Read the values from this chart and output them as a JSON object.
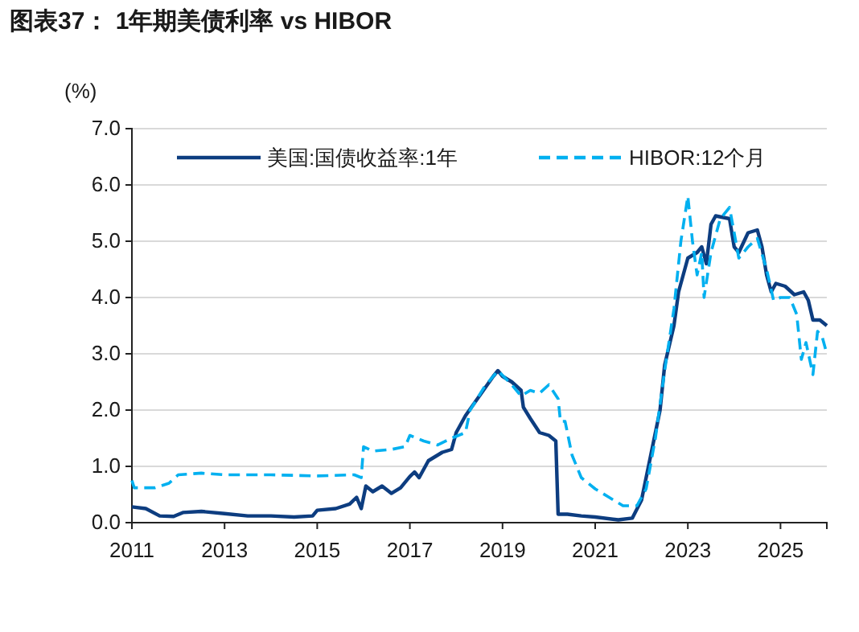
{
  "chart_data": {
    "type": "line",
    "title": "图表37： 1年期美债利率 vs HIBOR",
    "ylabel": "(%)",
    "xlim": [
      2011,
      2026
    ],
    "xticks": [
      2011,
      2013,
      2015,
      2017,
      2019,
      2021,
      2023,
      2025
    ],
    "ylim": [
      0,
      7
    ],
    "yticks": [
      {
        "value": 0,
        "label": "0.0"
      },
      {
        "value": 1,
        "label": "1.0"
      },
      {
        "value": 2,
        "label": "2.0"
      },
      {
        "value": 3,
        "label": "3.0"
      },
      {
        "value": 4,
        "label": "4.0"
      },
      {
        "value": 5,
        "label": "5.0"
      },
      {
        "value": 6,
        "label": "6.0"
      },
      {
        "value": 7,
        "label": "7.0"
      }
    ],
    "grid": "y",
    "legend": "top",
    "marker": "none",
    "series": [
      {
        "name": "美国:国债收益率:1年",
        "color": "#0d3d80",
        "line_style": "solid",
        "x": [
          2011.0,
          2011.3,
          2011.6,
          2011.9,
          2012.1,
          2012.5,
          2013.0,
          2013.5,
          2014.0,
          2014.5,
          2014.9,
          2015.0,
          2015.4,
          2015.7,
          2015.85,
          2015.95,
          2016.05,
          2016.2,
          2016.4,
          2016.6,
          2016.8,
          2017.0,
          2017.1,
          2017.2,
          2017.4,
          2017.7,
          2017.9,
          2018.0,
          2018.2,
          2018.5,
          2018.8,
          2018.9,
          2019.0,
          2019.2,
          2019.4,
          2019.45,
          2019.6,
          2019.8,
          2020.0,
          2020.15,
          2020.2,
          2020.4,
          2020.7,
          2021.0,
          2021.5,
          2021.8,
          2022.0,
          2022.2,
          2022.4,
          2022.5,
          2022.7,
          2022.8,
          2023.0,
          2023.2,
          2023.3,
          2023.4,
          2023.5,
          2023.6,
          2023.9,
          2024.0,
          2024.1,
          2024.3,
          2024.5,
          2024.6,
          2024.7,
          2024.8,
          2024.9,
          2025.1,
          2025.3,
          2025.5,
          2025.6,
          2025.7,
          2025.85,
          2026.0
        ],
        "values": [
          0.28,
          0.25,
          0.12,
          0.11,
          0.18,
          0.2,
          0.16,
          0.12,
          0.12,
          0.1,
          0.12,
          0.22,
          0.25,
          0.33,
          0.45,
          0.25,
          0.65,
          0.55,
          0.65,
          0.52,
          0.62,
          0.82,
          0.9,
          0.8,
          1.1,
          1.25,
          1.3,
          1.6,
          1.9,
          2.25,
          2.6,
          2.7,
          2.6,
          2.5,
          2.35,
          2.05,
          1.85,
          1.6,
          1.55,
          1.45,
          0.15,
          0.15,
          0.12,
          0.1,
          0.05,
          0.08,
          0.4,
          1.2,
          2.0,
          2.8,
          3.5,
          4.1,
          4.7,
          4.8,
          4.9,
          4.6,
          5.3,
          5.45,
          5.4,
          4.9,
          4.8,
          5.15,
          5.2,
          4.9,
          4.4,
          4.1,
          4.25,
          4.2,
          4.05,
          4.1,
          3.95,
          3.6,
          3.6,
          3.5
        ]
      },
      {
        "name": "HIBOR:12个月",
        "color": "#00b0f0",
        "line_style": "dashed",
        "x": [
          2011.0,
          2011.05,
          2011.5,
          2011.8,
          2012.0,
          2012.5,
          2013.0,
          2014.0,
          2015.0,
          2015.8,
          2015.95,
          2016.0,
          2016.2,
          2016.6,
          2016.9,
          2017.0,
          2017.3,
          2017.6,
          2017.9,
          2018.2,
          2018.3,
          2018.6,
          2018.9,
          2019.2,
          2019.4,
          2019.6,
          2019.8,
          2020.0,
          2020.2,
          2020.25,
          2020.35,
          2020.5,
          2020.7,
          2021.0,
          2021.3,
          2021.6,
          2021.9,
          2022.1,
          2022.3,
          2022.5,
          2022.7,
          2022.85,
          2023.0,
          2023.1,
          2023.2,
          2023.3,
          2023.35,
          2023.5,
          2023.7,
          2023.9,
          2024.1,
          2024.3,
          2024.5,
          2024.7,
          2024.85,
          2025.0,
          2025.2,
          2025.35,
          2025.45,
          2025.55,
          2025.7,
          2025.8,
          2025.9,
          2026.0
        ],
        "values": [
          0.75,
          0.62,
          0.62,
          0.7,
          0.85,
          0.88,
          0.85,
          0.85,
          0.83,
          0.85,
          0.8,
          1.35,
          1.27,
          1.3,
          1.35,
          1.55,
          1.45,
          1.38,
          1.5,
          1.6,
          2.0,
          2.4,
          2.7,
          2.45,
          2.25,
          2.35,
          2.3,
          2.45,
          2.2,
          1.8,
          1.8,
          1.2,
          0.8,
          0.6,
          0.45,
          0.3,
          0.3,
          0.6,
          1.5,
          2.7,
          3.8,
          5.0,
          5.8,
          5.0,
          4.4,
          4.8,
          4.0,
          4.8,
          5.4,
          5.6,
          4.7,
          4.9,
          5.05,
          4.5,
          3.95,
          4.0,
          4.0,
          3.7,
          2.9,
          3.2,
          2.63,
          3.4,
          3.3,
          3.0
        ]
      }
    ]
  }
}
